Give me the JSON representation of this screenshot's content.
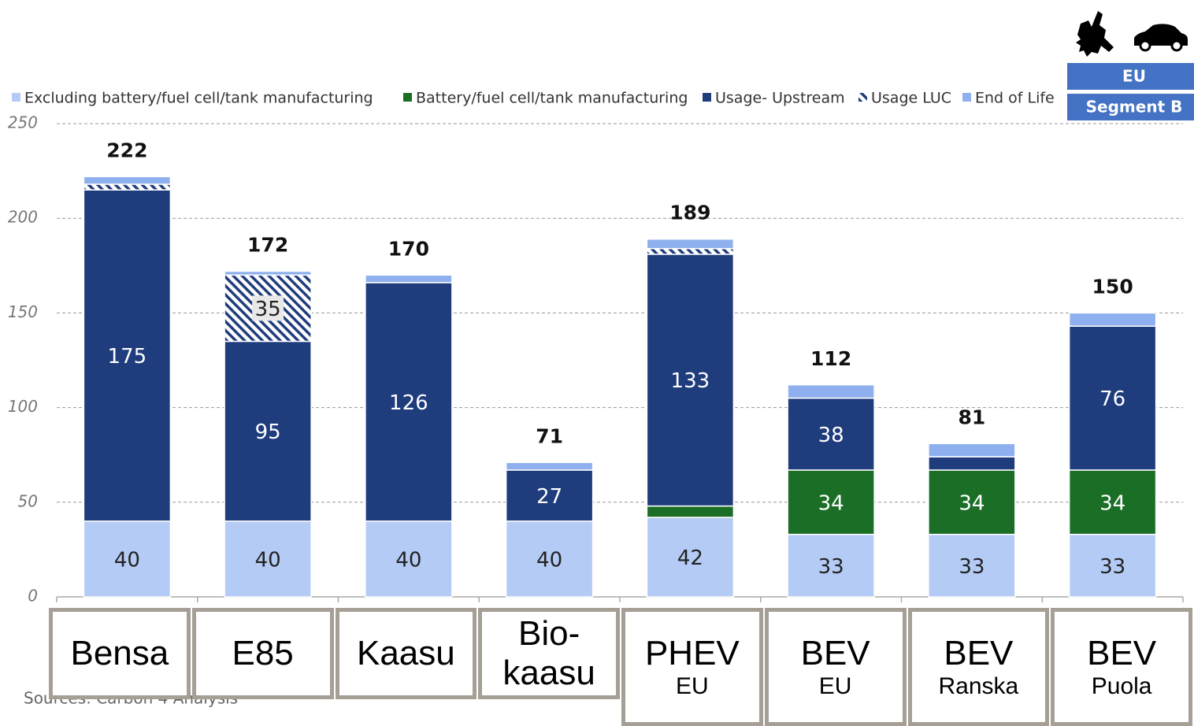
{
  "chart_data": {
    "type": "stacked_bar",
    "badges": [
      "EU",
      "Segment B"
    ],
    "source": "Sources: Carbon 4 Analysis",
    "categories": [
      "Bensa",
      "E85",
      "Kaasu",
      "Bio-kaasu",
      "PHEV",
      "BEV",
      "BEV",
      "BEV"
    ],
    "category_sublabels": [
      null,
      null,
      null,
      null,
      "EU",
      "EU",
      "Ranska",
      "Puola"
    ],
    "series": [
      {
        "name": "Excluding battery/fuel cell/tank manufacturing",
        "color": "#b4cbf5",
        "values": [
          40,
          40,
          40,
          40,
          42,
          33,
          33,
          33
        ]
      },
      {
        "name": "Battery/fuel cell/tank manufacturing",
        "color": "#1b6e26",
        "values": [
          0,
          0,
          0,
          0,
          6,
          34,
          34,
          34
        ]
      },
      {
        "name": "Usage- Upstream",
        "color": "#1f3c7d",
        "values": [
          175,
          95,
          126,
          27,
          133,
          38,
          7,
          76
        ]
      },
      {
        "name": "Usage LUC",
        "color": "#1f3c7d",
        "hatched": true,
        "values": [
          3,
          35,
          0,
          0,
          3,
          0,
          0,
          0
        ]
      },
      {
        "name": "End of Life",
        "color": "#8fb0ee",
        "values": [
          4,
          2,
          4,
          4,
          5,
          7,
          7,
          7
        ]
      }
    ],
    "totals": [
      222,
      172,
      170,
      71,
      189,
      112,
      81,
      150
    ],
    "ylim": [
      0,
      250
    ],
    "yticks": [
      0,
      50,
      100,
      150,
      200,
      250
    ],
    "grid": true
  }
}
